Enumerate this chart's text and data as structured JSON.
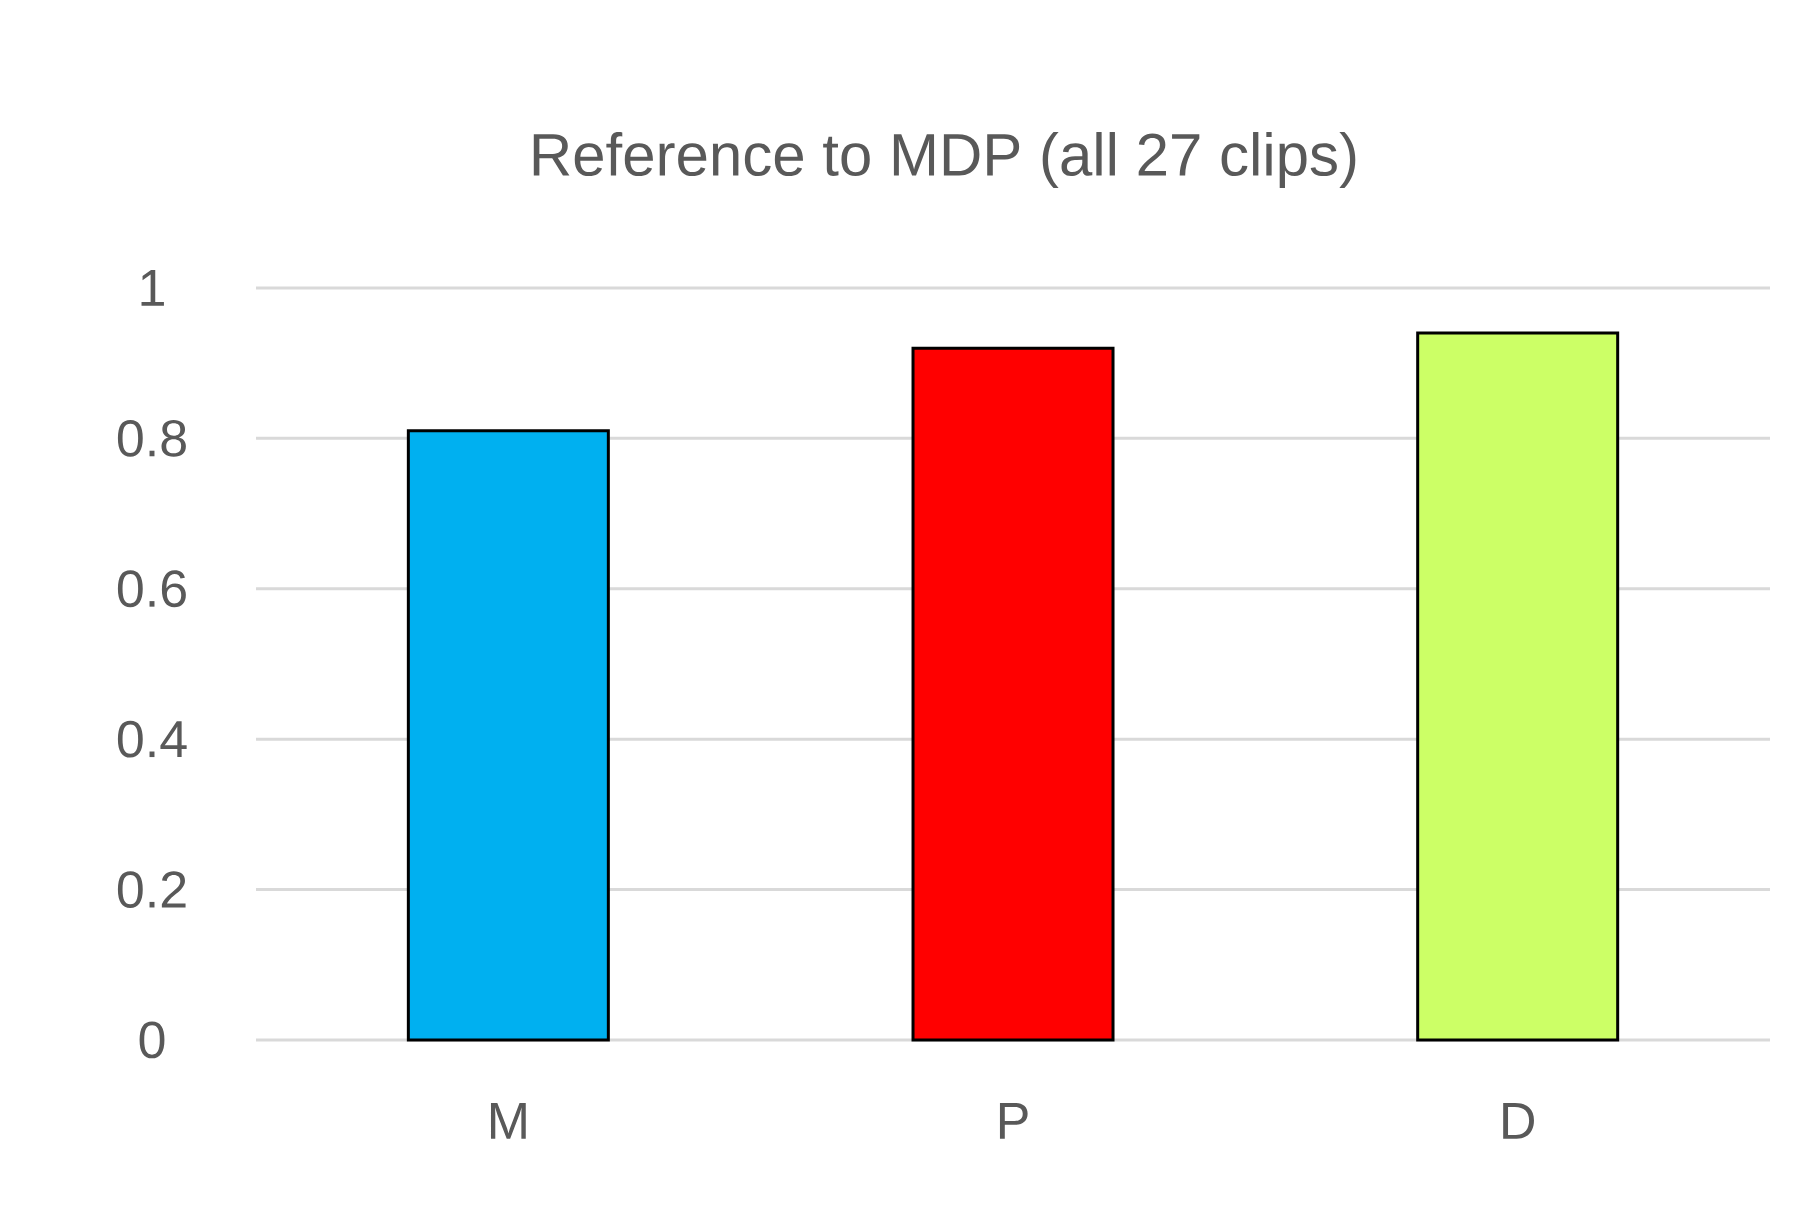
{
  "chart_data": {
    "type": "bar",
    "title": "Reference to MDP (all 27 clips)",
    "categories": [
      "M",
      "P",
      "D"
    ],
    "values": [
      0.81,
      0.92,
      0.94
    ],
    "colors": [
      "#00b0f0",
      "#ff0000",
      "#ccff66"
    ],
    "ylim": [
      0,
      1
    ],
    "yticks": [
      0,
      0.2,
      0.4,
      0.6,
      0.8,
      1
    ],
    "grid": "y"
  }
}
